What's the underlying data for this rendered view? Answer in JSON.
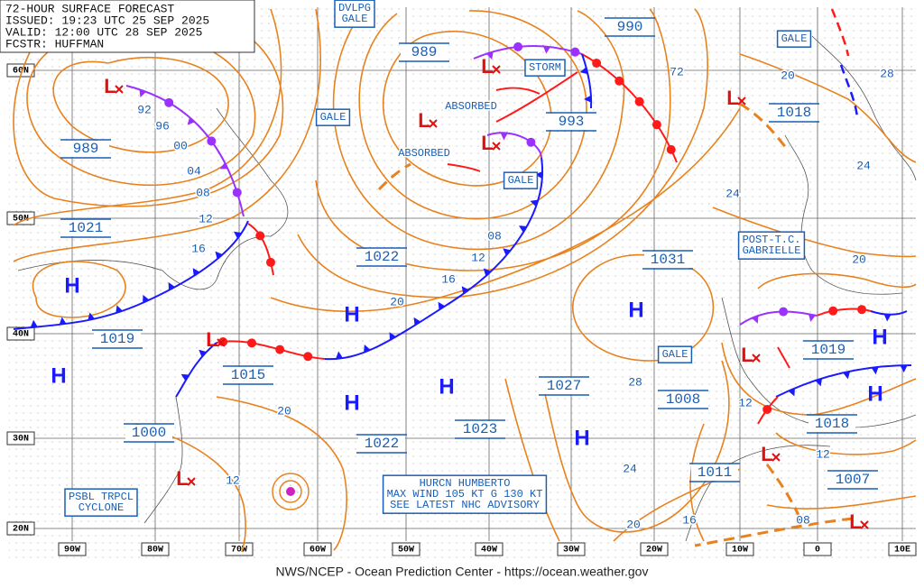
{
  "header": {
    "lines": [
      "72-HOUR SURFACE FORECAST",
      "ISSUED: 19:23 UTC 25 SEP 2025",
      "VALID: 12:00 UTC 28 SEP 2025",
      "FCSTR: HUFFMAN"
    ]
  },
  "grid": {
    "latitudes": [
      "60N",
      "50N",
      "40N",
      "30N",
      "20N"
    ],
    "longitudes": [
      "90W",
      "80W",
      "70W",
      "60W",
      "50W",
      "40W",
      "30W",
      "20W",
      "10W",
      "0",
      "10E"
    ]
  },
  "central_pressures": [
    "989",
    "990",
    "993",
    "989",
    "1021",
    "1022",
    "1031",
    "1019",
    "1015",
    "1027",
    "1008",
    "1019",
    "1018",
    "1018",
    "1023",
    "1022",
    "1000",
    "1011",
    "1007"
  ],
  "isobar_labels": [
    "92",
    "96",
    "00",
    "04",
    "08",
    "12",
    "16",
    "72",
    "20",
    "28",
    "24",
    "24",
    "20",
    "08",
    "12",
    "16",
    "20",
    "28",
    "12",
    "12",
    "24",
    "08",
    "16",
    "20",
    "20",
    "12"
  ],
  "highs": [
    "H",
    "H",
    "H",
    "H",
    "H",
    "H",
    "H",
    "H",
    "H"
  ],
  "lows": [
    "L",
    "L",
    "L",
    "L",
    "L",
    "L",
    "L",
    "L",
    "L",
    "L"
  ],
  "notes": {
    "absorbed": [
      "ABSORBED",
      "ABSORBED"
    ]
  },
  "boxed_notes": [
    [
      "DVLPG",
      "GALE"
    ],
    [
      "GALE"
    ],
    [
      "STORM"
    ],
    [
      "GALE"
    ],
    [
      "GALE"
    ],
    [
      "GALE"
    ],
    [
      "POST-T.C.",
      "GABRIELLE"
    ],
    [
      "PSBL TRPCL",
      "CYCLONE"
    ],
    [
      "HURCN HUMBERTO",
      "MAX WIND 105 KT G 130 KT",
      "SEE LATEST NHC ADVISORY"
    ]
  ],
  "footer": "NWS/NCEP - Ocean Prediction Center - https://ocean.weather.gov"
}
